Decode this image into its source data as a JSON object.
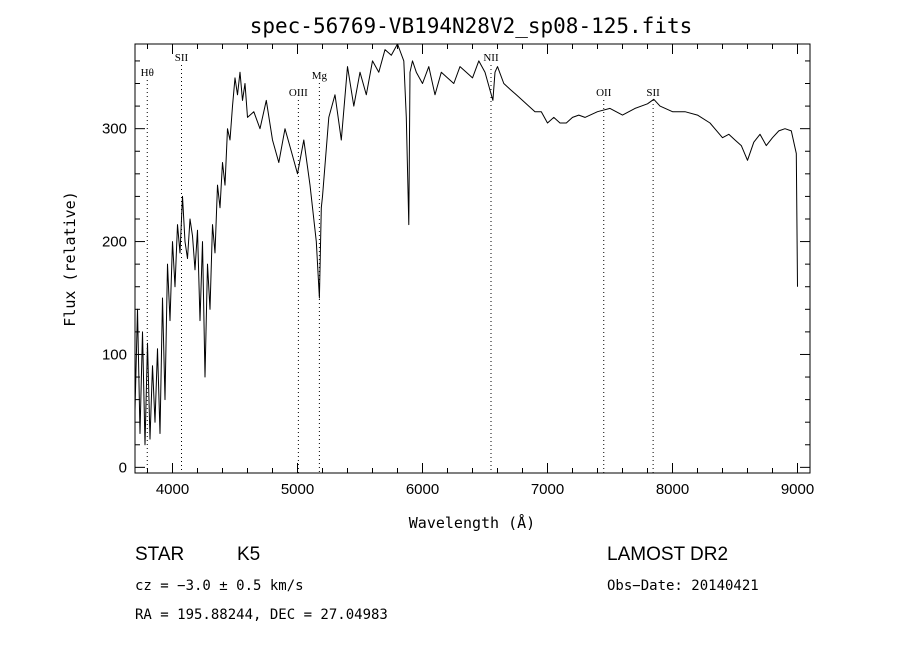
{
  "chart_data": {
    "type": "line",
    "title": "spec-56769-VB194N28V2_sp08-125.fits",
    "xlabel": "Wavelength (Å)",
    "ylabel": "Flux (relative)",
    "xlim": [
      3700,
      9100
    ],
    "ylim": [
      -5,
      375
    ],
    "x_ticks": [
      "4000",
      "5000",
      "6000",
      "7000",
      "8000",
      "9000"
    ],
    "y_ticks": [
      "0",
      "100",
      "200",
      "300"
    ],
    "spectral_lines": [
      {
        "label": "Hθ",
        "x": 3798
      },
      {
        "label": "SII",
        "x": 4072
      },
      {
        "label": "OIII",
        "x": 5007
      },
      {
        "label": "Mg",
        "x": 5175
      },
      {
        "label": "NII",
        "x": 6548
      },
      {
        "label": "OII",
        "x": 7450
      },
      {
        "label": "SII",
        "x": 7845
      }
    ],
    "series": [
      {
        "x": [
          3700,
          3720,
          3740,
          3760,
          3780,
          3800,
          3820,
          3840,
          3860,
          3880,
          3900,
          3920,
          3940,
          3960,
          3980,
          4000,
          4020,
          4040,
          4060,
          4080,
          4100,
          4120,
          4140,
          4160,
          4180,
          4200,
          4220,
          4240,
          4260,
          4280,
          4300,
          4320,
          4340,
          4360,
          4380,
          4400,
          4420,
          4440,
          4460,
          4480,
          4500,
          4520,
          4540,
          4560,
          4580,
          4600,
          4650,
          4700,
          4750,
          4800,
          4850,
          4900,
          4950,
          5000,
          5050,
          5100,
          5150,
          5175,
          5190,
          5200,
          5250,
          5300,
          5350,
          5400,
          5450,
          5500,
          5550,
          5600,
          5650,
          5700,
          5750,
          5800,
          5850,
          5870,
          5890,
          5900,
          5920,
          5950,
          6000,
          6050,
          6100,
          6150,
          6200,
          6250,
          6300,
          6350,
          6400,
          6450,
          6500,
          6550,
          6563,
          6580,
          6600,
          6650,
          6700,
          6750,
          6800,
          6850,
          6900,
          6950,
          7000,
          7050,
          7100,
          7150,
          7200,
          7250,
          7300,
          7400,
          7500,
          7600,
          7700,
          7800,
          7850,
          7900,
          8000,
          8100,
          8200,
          8300,
          8400,
          8450,
          8500,
          8550,
          8600,
          8650,
          8700,
          8750,
          8800,
          8850,
          8900,
          8950,
          8990,
          9000
        ],
        "y": [
          50,
          140,
          30,
          120,
          20,
          110,
          25,
          90,
          40,
          105,
          30,
          150,
          60,
          180,
          130,
          200,
          160,
          215,
          190,
          240,
          200,
          185,
          220,
          205,
          175,
          210,
          130,
          200,
          80,
          180,
          140,
          215,
          190,
          250,
          230,
          270,
          250,
          300,
          290,
          320,
          345,
          330,
          350,
          325,
          340,
          310,
          315,
          300,
          325,
          290,
          270,
          300,
          280,
          260,
          290,
          250,
          200,
          150,
          230,
          240,
          310,
          330,
          290,
          355,
          320,
          350,
          330,
          360,
          350,
          370,
          365,
          375,
          360,
          310,
          215,
          350,
          360,
          350,
          340,
          355,
          330,
          350,
          345,
          340,
          355,
          350,
          345,
          360,
          350,
          330,
          325,
          350,
          355,
          340,
          335,
          330,
          325,
          320,
          315,
          315,
          305,
          310,
          305,
          305,
          310,
          312,
          310,
          315,
          318,
          312,
          318,
          322,
          326,
          320,
          315,
          315,
          312,
          305,
          292,
          295,
          290,
          285,
          272,
          288,
          295,
          285,
          292,
          298,
          300,
          298,
          278,
          160
        ]
      }
    ]
  },
  "info": {
    "object_class": "STAR",
    "subclass": "K5",
    "survey": "LAMOST DR2",
    "cz": "cz = −3.0 ± 0.5 km/s",
    "obs_date": "Obs−Date: 20140421",
    "coords": "RA = 195.88244, DEC =  27.04983"
  }
}
